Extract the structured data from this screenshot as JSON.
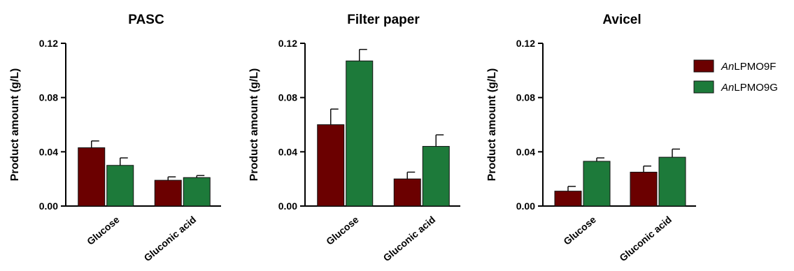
{
  "colors": {
    "AnLPMO9F": "#6b0000",
    "AnLPMO9G": "#1d7a3a"
  },
  "legend": {
    "placement": "right",
    "entries": [
      {
        "italic": "An",
        "rest": "LPMO9F"
      },
      {
        "italic": "An",
        "rest": "LPMO9G"
      }
    ]
  },
  "chart_data": [
    {
      "type": "bar",
      "title": "PASC",
      "ylabel": "Product amount (g/L)",
      "ylim": [
        0,
        0.12
      ],
      "yticks": [
        "0.00",
        "0.04",
        "0.08",
        "0.12"
      ],
      "categories": [
        "Glucose",
        "Gluconic acid"
      ],
      "series": [
        {
          "name": "AnLPMO9F",
          "values": [
            0.043,
            0.019
          ],
          "errors": [
            0.005,
            0.0025
          ]
        },
        {
          "name": "AnLPMO9G",
          "values": [
            0.03,
            0.021
          ],
          "errors": [
            0.0055,
            0.0015
          ]
        }
      ]
    },
    {
      "type": "bar",
      "title": "Filter paper",
      "ylabel": "Product amount (g/L)",
      "ylim": [
        0,
        0.12
      ],
      "yticks": [
        "0.00",
        "0.04",
        "0.08",
        "0.12"
      ],
      "categories": [
        "Glucose",
        "Gluconic acid"
      ],
      "series": [
        {
          "name": "AnLPMO9F",
          "values": [
            0.06,
            0.02
          ],
          "errors": [
            0.0115,
            0.005
          ]
        },
        {
          "name": "AnLPMO9G",
          "values": [
            0.107,
            0.044
          ],
          "errors": [
            0.0085,
            0.0085
          ]
        }
      ]
    },
    {
      "type": "bar",
      "title": "Avicel",
      "ylabel": "Product amount (g/L)",
      "ylim": [
        0,
        0.12
      ],
      "yticks": [
        "0.00",
        "0.04",
        "0.08",
        "0.12"
      ],
      "categories": [
        "Glucose",
        "Gluconic acid"
      ],
      "series": [
        {
          "name": "AnLPMO9F",
          "values": [
            0.011,
            0.025
          ],
          "errors": [
            0.0035,
            0.0045
          ]
        },
        {
          "name": "AnLPMO9G",
          "values": [
            0.033,
            0.036
          ],
          "errors": [
            0.0025,
            0.006
          ]
        }
      ]
    }
  ]
}
